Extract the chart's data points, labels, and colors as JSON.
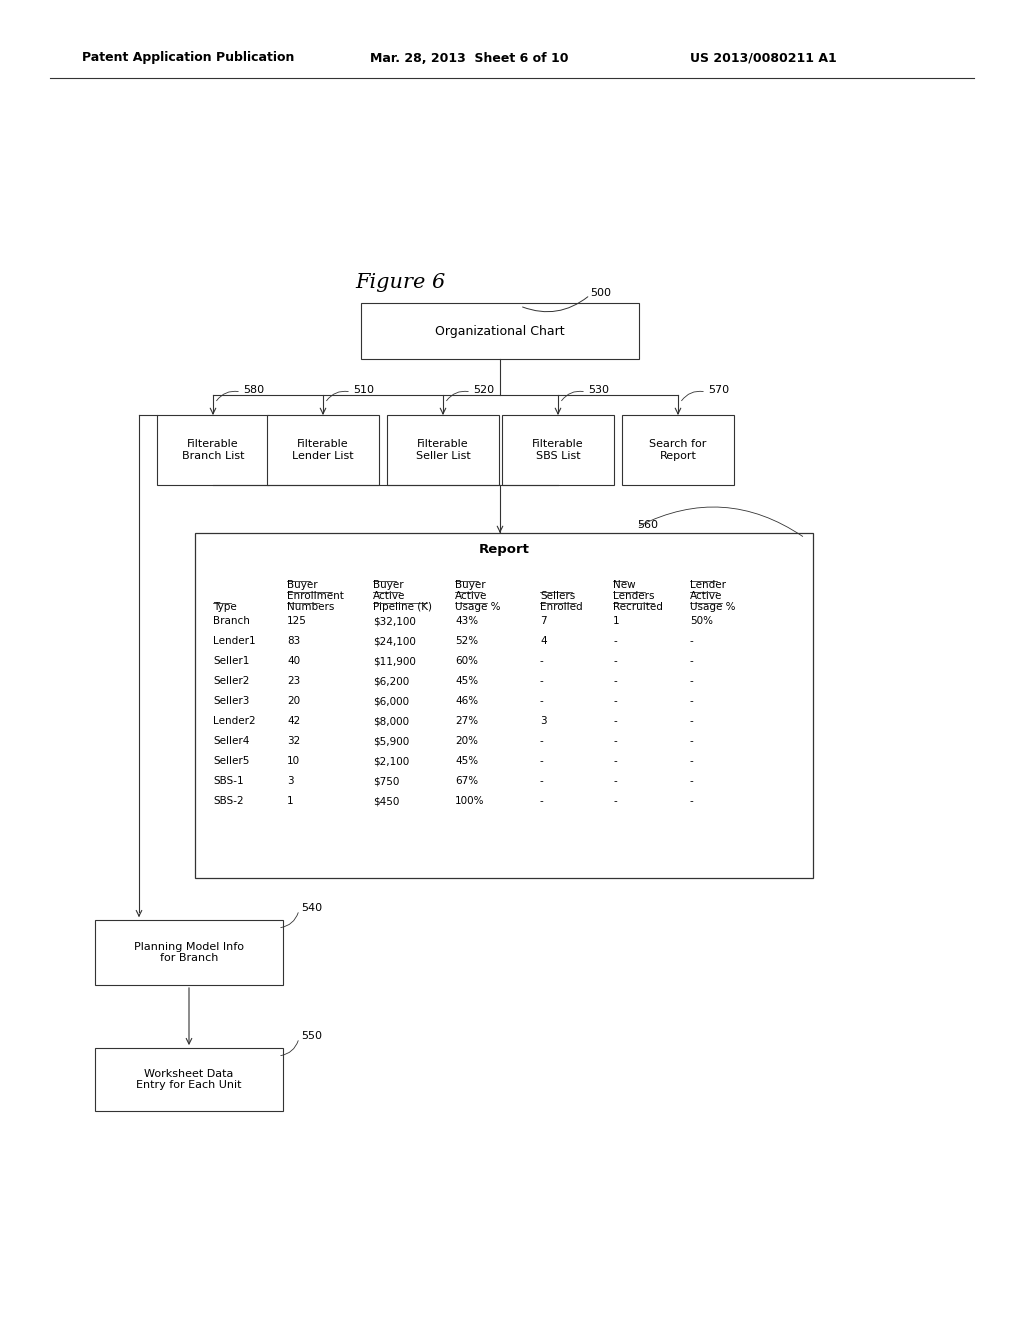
{
  "bg": "#ffffff",
  "hdr_left": "Patent Application Publication",
  "hdr_mid": "Mar. 28, 2013  Sheet 6 of 10",
  "hdr_right": "US 2013/0080211 A1",
  "fig_label": "Figure 6",
  "n500": "Organizational Chart",
  "n580": "Filterable\nBranch List",
  "n510": "Filterable\nLender List",
  "n520": "Filterable\nSeller List",
  "n530": "Filterable\nSBS List",
  "n570": "Search for\nReport",
  "n560_title": "Report",
  "n540": "Planning Model Info\nfor Branch",
  "n550": "Worksheet Data\nEntry for Each Unit",
  "header_lines": [
    [
      "Type"
    ],
    [
      "Buyer",
      "Enrollment",
      "Numbers"
    ],
    [
      "Buyer",
      "Active",
      "Pipeline (K)"
    ],
    [
      "Buyer",
      "Active",
      "Usage %"
    ],
    [
      "Sellers",
      "Enrolled"
    ],
    [
      "New",
      "Lenders",
      "Recruited"
    ],
    [
      "Lender",
      "Active",
      "Usage %"
    ]
  ],
  "rows": [
    [
      "Branch",
      "125",
      "$32,100",
      "43%",
      "7",
      "1",
      "50%"
    ],
    [
      "Lender1",
      "83",
      "$24,100",
      "52%",
      "4",
      "-",
      "-"
    ],
    [
      "Seller1",
      "40",
      "$11,900",
      "60%",
      "-",
      "-",
      "-"
    ],
    [
      "Seller2",
      "23",
      "$6,200",
      "45%",
      "-",
      "-",
      "-"
    ],
    [
      "Seller3",
      "20",
      "$6,000",
      "46%",
      "-",
      "-",
      "-"
    ],
    [
      "Lender2",
      "42",
      "$8,000",
      "27%",
      "3",
      "-",
      "-"
    ],
    [
      "Seller4",
      "32",
      "$5,900",
      "20%",
      "-",
      "-",
      "-"
    ],
    [
      "Seller5",
      "10",
      "$2,100",
      "45%",
      "-",
      "-",
      "-"
    ],
    [
      "SBS-1",
      "3",
      "$750",
      "67%",
      "-",
      "-",
      "-"
    ],
    [
      "SBS-2",
      "1",
      "$450",
      "100%",
      "-",
      "-",
      "-"
    ]
  ],
  "child_centers_x": [
    213,
    323,
    443,
    558,
    678
  ],
  "child_nums": [
    "580",
    "510",
    "520",
    "530",
    "570"
  ],
  "child_labels": [
    "Filterable\nBranch List",
    "Filterable\nLender List",
    "Filterable\nSeller List",
    "Filterable\nSBS List",
    "Search for\nReport"
  ]
}
